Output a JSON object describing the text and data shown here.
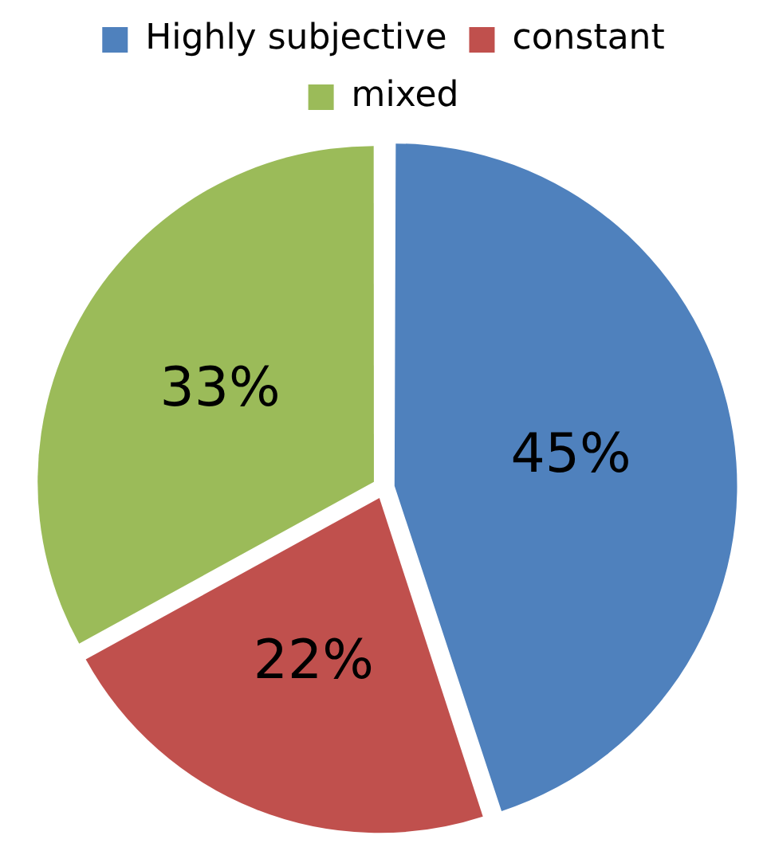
{
  "chart_data": {
    "type": "pie",
    "categories": [
      "Highly subjective",
      "constant",
      "mixed"
    ],
    "values": [
      45,
      22,
      33
    ],
    "colors": [
      "#4f81bd",
      "#c0504d",
      "#9bbb59"
    ],
    "value_labels": [
      "45%",
      "22%",
      "33%"
    ],
    "legend": "top"
  }
}
